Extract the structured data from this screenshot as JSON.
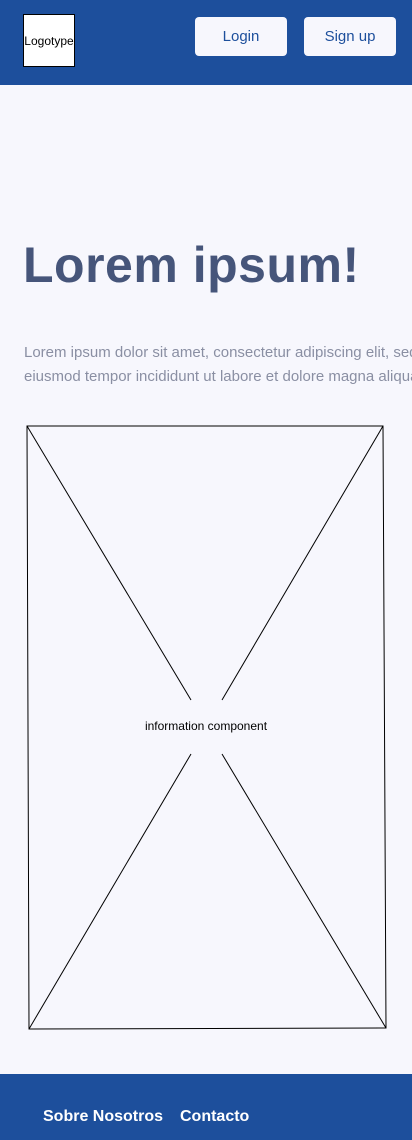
{
  "header": {
    "logo_text": "Logotype",
    "login_label": "Login",
    "signup_label": "Sign up"
  },
  "hero": {
    "title": "Lorem ipsum!",
    "text_line1": "Lorem ipsum dolor sit amet, consectetur adipiscing elit, sed do",
    "text_line2": "eiusmod tempor incididunt ut labore et dolore magna aliqua."
  },
  "info": {
    "label": "information component"
  },
  "footer": {
    "links": [
      {
        "label": "Sobre Nosotros"
      },
      {
        "label": "Contacto"
      }
    ]
  },
  "colors": {
    "brand": "#1d4f9c",
    "background": "#f7f7fd",
    "title": "#46557a",
    "body_text": "#8a8fa3"
  }
}
